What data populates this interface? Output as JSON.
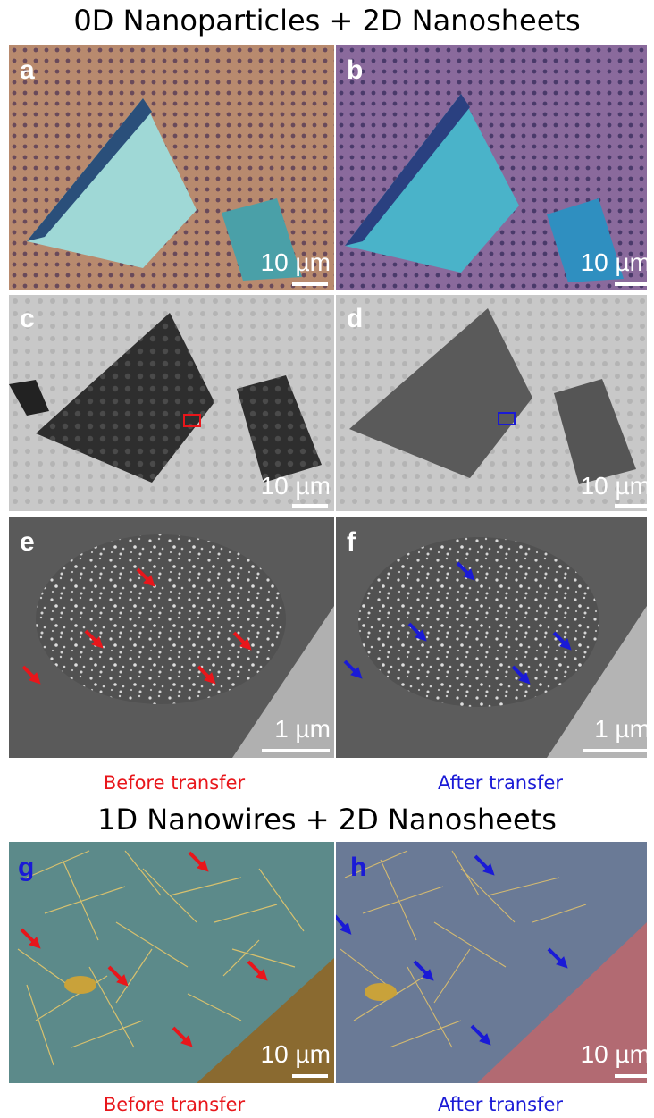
{
  "titles": {
    "top": "0D Nanoparticles + 2D Nanosheets",
    "bottom": "1D Nanowires + 2D Nanosheets"
  },
  "captions": {
    "before_1": "Before transfer",
    "after_1": "After transfer",
    "before_2": "Before transfer",
    "after_2": "After transfer"
  },
  "colors": {
    "before": "#e8161b",
    "after": "#1a1ad6"
  },
  "panels": {
    "a": {
      "label": "a",
      "scale": "10 µm"
    },
    "b": {
      "label": "b",
      "scale": "10 µm"
    },
    "c": {
      "label": "c",
      "scale": "10 µm"
    },
    "d": {
      "label": "d",
      "scale": "10 µm"
    },
    "e": {
      "label": "e",
      "scale": "1 µm"
    },
    "f": {
      "label": "f",
      "scale": "1 µm"
    },
    "g": {
      "label": "g",
      "scale": "10 µm"
    },
    "h": {
      "label": "h",
      "scale": "10 µm"
    }
  }
}
